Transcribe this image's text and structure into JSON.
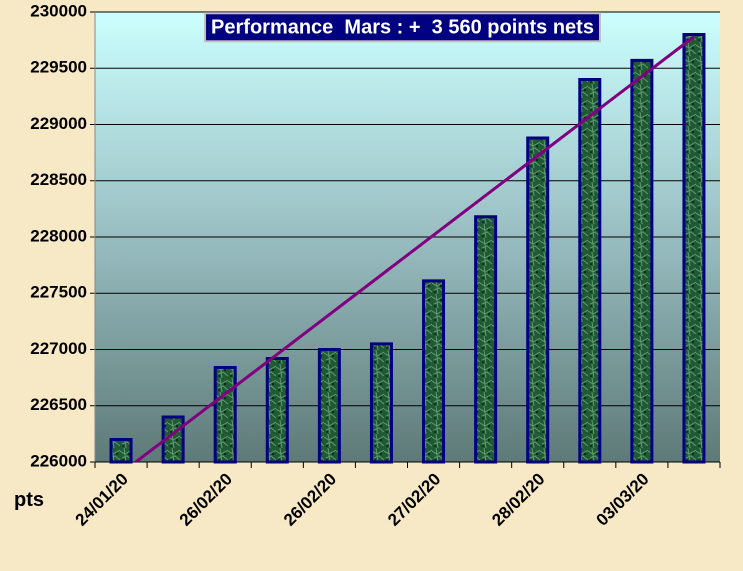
{
  "chart_data": {
    "type": "bar",
    "title": "Performance  Mars : +  3 560 points nets",
    "y_label": "pts",
    "categories": [
      "24/01/20",
      null,
      "26/02/20",
      null,
      "26/02/20",
      null,
      "27/02/20",
      null,
      "28/02/20",
      null,
      "03/03/20",
      null
    ],
    "values": [
      226200,
      226400,
      226840,
      226920,
      227000,
      227050,
      227610,
      228180,
      228880,
      229400,
      229570,
      229800
    ],
    "color": "#1f5a35",
    "edge_color": "#000080",
    "trendline": {
      "color": "#800080",
      "values": [
        225900,
        229780
      ]
    },
    "ylim": [
      226000,
      230000
    ],
    "yticks": [
      226000,
      226500,
      227000,
      227500,
      228000,
      228500,
      229000,
      229500,
      230000
    ],
    "grid": true
  }
}
